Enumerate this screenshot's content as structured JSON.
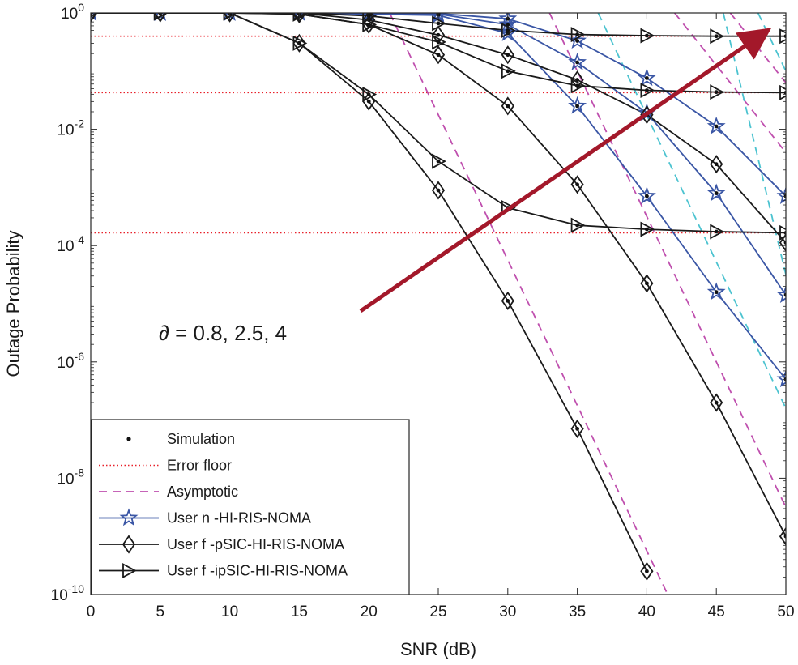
{
  "chart_data": {
    "type": "line",
    "title": "",
    "xlabel": "SNR (dB)",
    "ylabel": "Outage Probability",
    "x": [
      0,
      5,
      10,
      15,
      20,
      25,
      30,
      35,
      40,
      45,
      50
    ],
    "xlim": [
      0,
      50
    ],
    "ylim_log10": [
      -10,
      0
    ],
    "xticks": [
      "0",
      "5",
      "10",
      "15",
      "20",
      "25",
      "30",
      "35",
      "40",
      "45",
      "50"
    ],
    "yticks": [
      {
        "base": "10",
        "exp": "0",
        "log10": 0
      },
      {
        "base": "10",
        "exp": "-2",
        "log10": -2
      },
      {
        "base": "10",
        "exp": "-4",
        "log10": -4
      },
      {
        "base": "10",
        "exp": "-6",
        "log10": -6
      },
      {
        "base": "10",
        "exp": "-8",
        "log10": -8
      },
      {
        "base": "10",
        "exp": "-10",
        "log10": -10
      }
    ],
    "annotation": {
      "symbol": "∂",
      "text": " = 0.8, 2.5, 4"
    },
    "colors": {
      "user_n": "#3a56a5",
      "black": "#1a1a1a",
      "asym_magenta": "#bf4fae",
      "asym_cyan": "#4cc3d0",
      "floor": "#e8202a",
      "arrow": "#a3182a"
    },
    "error_floors_log10": [
      -0.4,
      -1.37,
      -3.78
    ],
    "series": [
      {
        "name": "User n -HI-RIS-NOMA, ∂=0.8",
        "marker": "star",
        "color": "#3a56a5",
        "log10_values": [
          0,
          0,
          0,
          0,
          -0.02,
          -0.04,
          -0.35,
          -1.6,
          -3.15,
          -4.8,
          -6.3
        ]
      },
      {
        "name": "User n -HI-RIS-NOMA, ∂=2.5",
        "marker": "star",
        "color": "#3a56a5",
        "log10_values": [
          0,
          0,
          0,
          0,
          -0.01,
          -0.02,
          -0.2,
          -0.85,
          -1.72,
          -3.1,
          -4.85
        ]
      },
      {
        "name": "User n -HI-RIS-NOMA, ∂=4",
        "marker": "star",
        "color": "#3a56a5",
        "log10_values": [
          0,
          0,
          0,
          0,
          0,
          -0.01,
          -0.1,
          -0.48,
          -1.12,
          -1.95,
          -3.15
        ]
      },
      {
        "name": "User f -pSIC-HI-RIS-NOMA, ∂=0.8",
        "marker": "diamond",
        "color": "#1a1a1a",
        "log10_values": [
          0,
          0,
          0,
          -0.52,
          -1.52,
          -3.05,
          -4.95,
          -7.15,
          -9.6
        ]
      },
      {
        "name": "User f -pSIC-HI-RIS-NOMA, ∂=2.5",
        "marker": "diamond",
        "color": "#1a1a1a",
        "log10_values": [
          0,
          0,
          0,
          -0.02,
          -0.2,
          -0.72,
          -1.6,
          -2.95,
          -4.65,
          -6.7,
          -9.0
        ]
      },
      {
        "name": "User f -pSIC-HI-RIS-NOMA, ∂=4",
        "marker": "diamond",
        "color": "#1a1a1a",
        "log10_values": [
          0,
          0,
          0,
          0,
          -0.12,
          -0.38,
          -0.72,
          -1.15,
          -1.75,
          -2.6,
          -3.95
        ]
      },
      {
        "name": "User f -ipSIC-HI-RIS-NOMA, ∂=0.8",
        "marker": "triangle-right",
        "color": "#1a1a1a",
        "log10_values": [
          0,
          0,
          0,
          -0.52,
          -1.4,
          -2.55,
          -3.35,
          -3.65,
          -3.72,
          -3.76,
          -3.78
        ]
      },
      {
        "name": "User f -ipSIC-HI-RIS-NOMA, ∂=2.5",
        "marker": "triangle-right",
        "color": "#1a1a1a",
        "log10_values": [
          0,
          0,
          0,
          -0.02,
          -0.2,
          -0.5,
          -1.0,
          -1.25,
          -1.33,
          -1.36,
          -1.37
        ]
      },
      {
        "name": "User f -ipSIC-HI-RIS-NOMA, ∂=4",
        "marker": "triangle-right",
        "color": "#1a1a1a",
        "log10_values": [
          0,
          0,
          0,
          0,
          -0.05,
          -0.18,
          -0.3,
          -0.37,
          -0.39,
          -0.4,
          -0.4
        ]
      }
    ],
    "asymptotic_lines": [
      {
        "color": "#bf4fae",
        "points": [
          [
            21.5,
            0
          ],
          [
            41.5,
            -10
          ]
        ]
      },
      {
        "color": "#bf4fae",
        "points": [
          [
            33,
            0
          ],
          [
            50,
            -8.5
          ]
        ]
      },
      {
        "color": "#bf4fae",
        "points": [
          [
            42,
            0
          ],
          [
            50,
            -2.4
          ]
        ]
      },
      {
        "color": "#bf4fae",
        "points": [
          [
            46,
            0
          ],
          [
            50,
            -1.2
          ]
        ]
      },
      {
        "color": "#4cc3d0",
        "points": [
          [
            36.5,
            0
          ],
          [
            50,
            -6.8
          ]
        ]
      },
      {
        "color": "#4cc3d0",
        "points": [
          [
            45.5,
            0
          ],
          [
            50,
            -4.5
          ]
        ]
      },
      {
        "color": "#4cc3d0",
        "points": [
          [
            48,
            0
          ],
          [
            50,
            -1.0
          ]
        ]
      }
    ],
    "legend": [
      {
        "label": "Simulation",
        "style": "dot"
      },
      {
        "label": "Error floor",
        "style": "dotted-red"
      },
      {
        "label": "Asymptotic",
        "style": "dashed-magenta"
      },
      {
        "label": "User n -HI-RIS-NOMA",
        "style": "star-blue"
      },
      {
        "label": "User f -pSIC-HI-RIS-NOMA",
        "style": "diamond-black"
      },
      {
        "label": "User f -ipSIC-HI-RIS-NOMA",
        "style": "triangle-black"
      }
    ],
    "legend_position": "bottom-left"
  }
}
